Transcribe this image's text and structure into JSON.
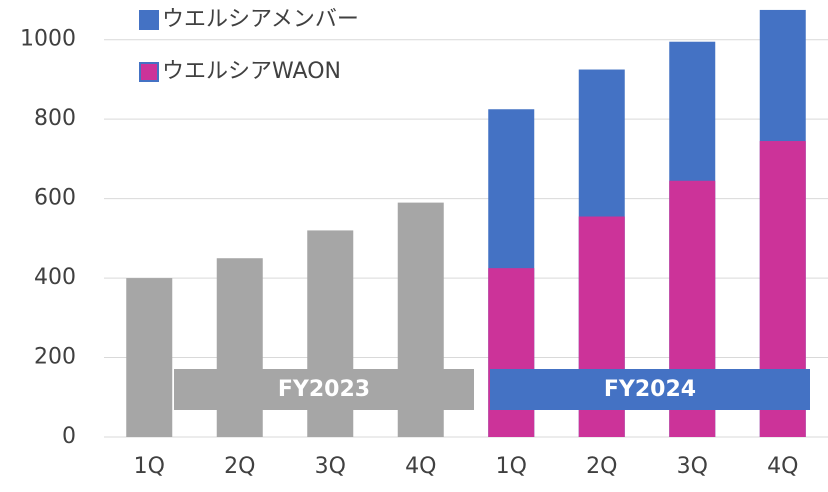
{
  "chart_data": {
    "type": "bar",
    "overlap": true,
    "categories": [
      "1Q",
      "2Q",
      "3Q",
      "4Q",
      "1Q",
      "2Q",
      "3Q",
      "4Q"
    ],
    "series": [
      {
        "name": "ウエルシアメンバー",
        "color": "#4472c4",
        "values": [
          null,
          null,
          null,
          null,
          825,
          925,
          995,
          1075
        ]
      },
      {
        "name": "ウエルシアWAON",
        "color": "#cc3399",
        "values": [
          null,
          null,
          null,
          null,
          425,
          555,
          645,
          745
        ]
      },
      {
        "color": "#a6a6a6",
        "values": [
          400,
          450,
          520,
          590,
          null,
          null,
          null,
          null
        ]
      }
    ],
    "groups": [
      {
        "label": "FY2023",
        "color": "#a6a6a6"
      },
      {
        "label": "FY2024",
        "color": "#4472c4"
      }
    ],
    "ylim": [
      0,
      1100
    ],
    "yticks": [
      0,
      200,
      400,
      600,
      800,
      1000
    ],
    "grid": true
  }
}
